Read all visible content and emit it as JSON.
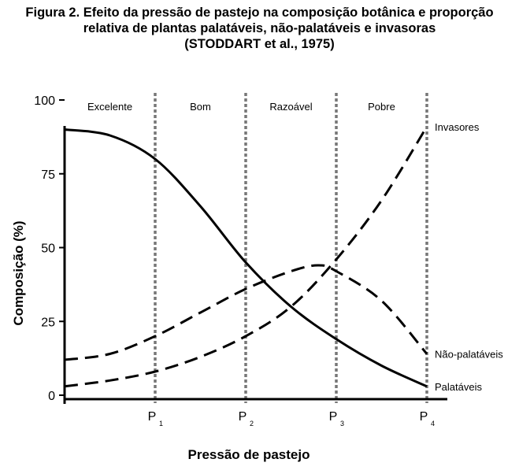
{
  "chart_data": {
    "type": "line",
    "title": "Figura 2. Efeito da pressão de pastejo na composição botânica e proporção",
    "title_line2": "relativa de plantas palatáveis, não-palatáveis e invasoras",
    "title_line3": "(STODDART et al., 1975)",
    "xlabel": "Pressão de pastejo",
    "ylabel": "Composição (%)",
    "ylim": [
      0,
      100
    ],
    "xlim": [
      0,
      4
    ],
    "yticks": [
      0,
      25,
      50,
      75,
      100
    ],
    "xticks": [
      {
        "value": 1,
        "label": "P",
        "sub": "1"
      },
      {
        "value": 2,
        "label": "P",
        "sub": "2"
      },
      {
        "value": 3,
        "label": "P",
        "sub": "3"
      },
      {
        "value": 4,
        "label": "P",
        "sub": "4"
      }
    ],
    "zones": [
      {
        "label": "Excelente",
        "from": 0,
        "to": 1
      },
      {
        "label": "Bom",
        "from": 1,
        "to": 2
      },
      {
        "label": "Razoável",
        "from": 2,
        "to": 3
      },
      {
        "label": "Pobre",
        "from": 3,
        "to": 4
      }
    ],
    "series": [
      {
        "name": "Palatáveis",
        "style": "solid",
        "x": [
          0,
          0.5,
          1,
          1.5,
          2,
          2.5,
          3,
          3.5,
          4
        ],
        "y": [
          90,
          88,
          80,
          64,
          45,
          30,
          19,
          10,
          3
        ]
      },
      {
        "name": "Não-palatáveis",
        "style": "dashed",
        "x": [
          0,
          0.5,
          1,
          1.5,
          2,
          2.5,
          2.8,
          3,
          3.5,
          4
        ],
        "y": [
          12,
          14,
          20,
          28,
          36,
          42,
          44,
          42,
          32,
          14
        ]
      },
      {
        "name": "Invasores",
        "style": "dashed",
        "x": [
          0,
          0.5,
          1,
          1.5,
          2,
          2.5,
          3,
          3.5,
          4
        ],
        "y": [
          3,
          5,
          8,
          13,
          20,
          30,
          46,
          66,
          91
        ]
      }
    ]
  }
}
